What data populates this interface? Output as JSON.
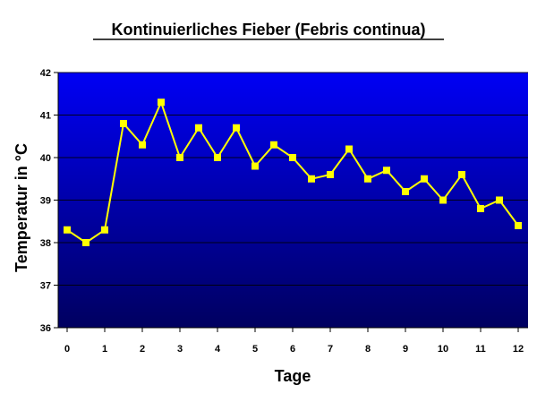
{
  "chart_data": {
    "type": "line",
    "title": "Kontinuierliches Fieber (Febris continua)",
    "xlabel": "Tage",
    "ylabel": "Temperatur in °C",
    "xlim": [
      0,
      12
    ],
    "ylim": [
      36,
      42
    ],
    "x_ticks": [
      0,
      1,
      2,
      3,
      4,
      5,
      6,
      7,
      8,
      9,
      10,
      11,
      12
    ],
    "y_ticks": [
      36,
      37,
      38,
      39,
      40,
      41,
      42
    ],
    "grid": "horizontal",
    "legend": "none",
    "colors": {
      "plot_top": "#0000f5",
      "plot_bottom": "#000060",
      "series": "#ffff00",
      "gridline": "#000000"
    },
    "series": [
      {
        "x": [
          0,
          0.5,
          1,
          1.5,
          2,
          2.5,
          3,
          3.5,
          4,
          4.5,
          5,
          5.5,
          6,
          6.5,
          7,
          7.5,
          8,
          8.5,
          9,
          9.5,
          10,
          10.5,
          11,
          11.5,
          12
        ],
        "values": [
          38.3,
          38.0,
          38.3,
          40.8,
          40.3,
          41.3,
          40.0,
          40.7,
          40.0,
          40.7,
          39.8,
          40.3,
          40.0,
          39.5,
          39.6,
          40.2,
          39.5,
          39.7,
          39.2,
          39.5,
          39.0,
          39.6,
          38.8,
          39.0,
          38.4
        ]
      }
    ]
  }
}
